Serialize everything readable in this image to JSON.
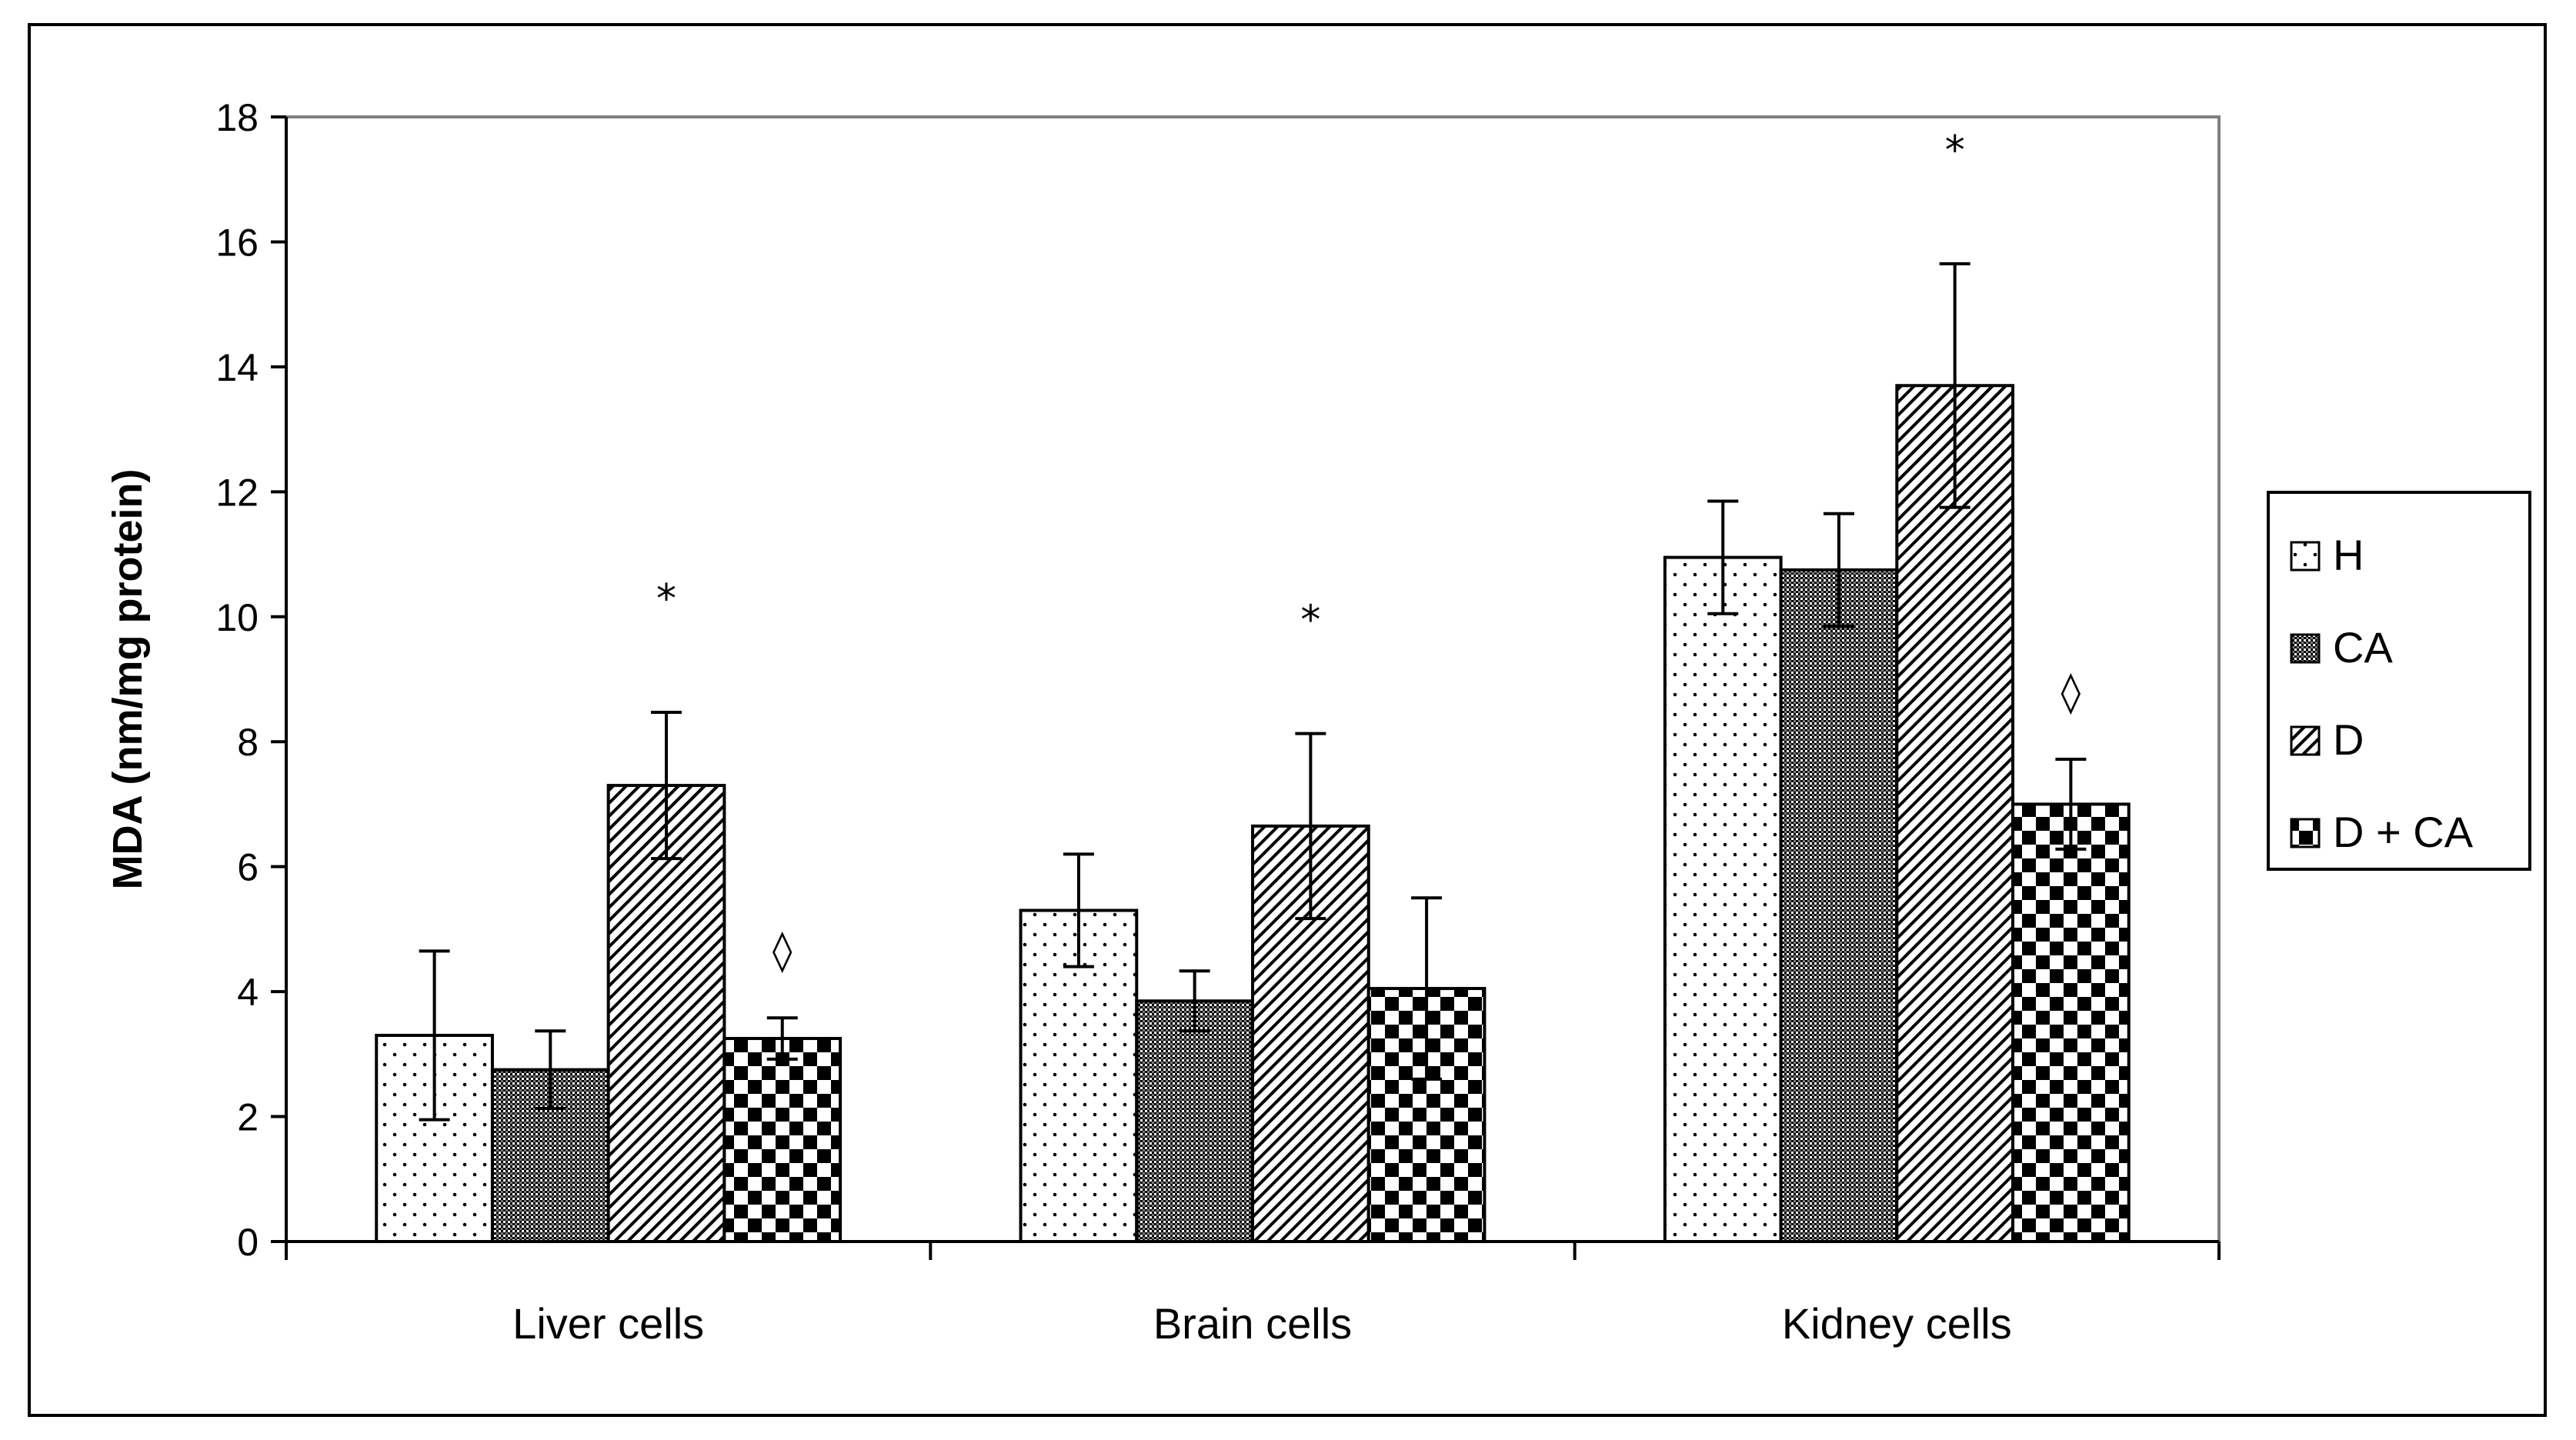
{
  "chart_data": {
    "type": "bar",
    "title": "",
    "xlabel": "",
    "ylabel": "MDA (nm/mg  protein)",
    "ylim": [
      0,
      18
    ],
    "yticks": [
      0,
      2,
      4,
      6,
      8,
      10,
      12,
      14,
      16,
      18
    ],
    "grid": false,
    "legend_position": "right",
    "categories": [
      "Liver cells",
      "Brain cells",
      "Kidney cells"
    ],
    "series": [
      {
        "name": "H",
        "pattern": "dots",
        "values": [
          3.3,
          5.3,
          10.95
        ],
        "errors": [
          1.35,
          0.9,
          0.9
        ],
        "annotations": [
          "",
          "",
          ""
        ]
      },
      {
        "name": "CA",
        "pattern": "fine-crosshatch",
        "values": [
          2.75,
          3.85,
          10.75
        ],
        "errors": [
          0.62,
          0.48,
          0.9
        ],
        "annotations": [
          "",
          "",
          ""
        ]
      },
      {
        "name": "D",
        "pattern": "diagonal-stripes",
        "values": [
          7.3,
          6.65,
          13.7
        ],
        "errors": [
          1.17,
          1.48,
          1.95
        ],
        "annotations": [
          "*",
          "*",
          "*"
        ]
      },
      {
        "name": "D + CA",
        "pattern": "checkerboard",
        "values": [
          3.25,
          4.05,
          7.0
        ],
        "errors": [
          0.33,
          1.45,
          0.72
        ],
        "annotations": [
          "◊",
          "",
          "◊"
        ]
      }
    ]
  }
}
